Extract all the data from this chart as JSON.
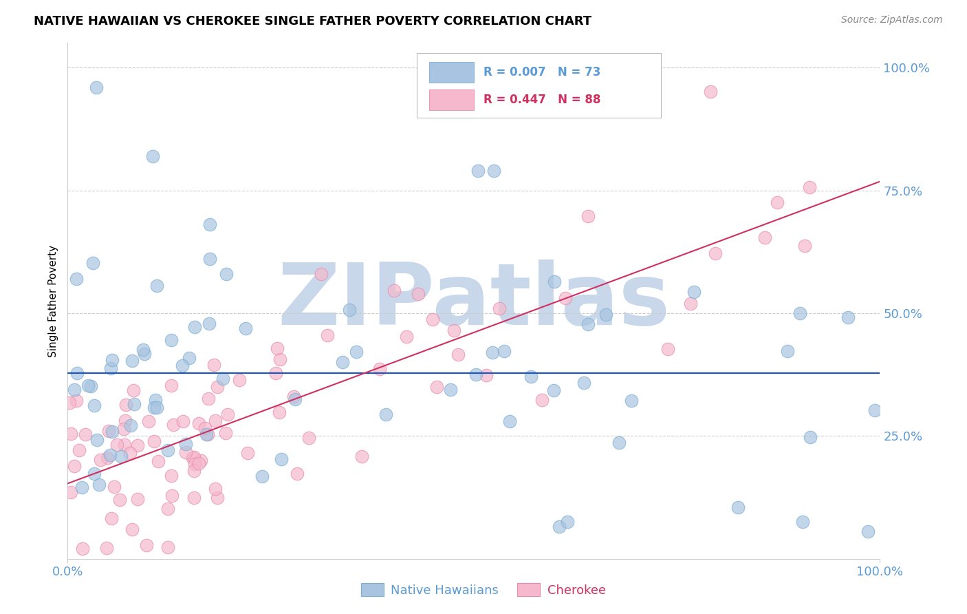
{
  "title": "NATIVE HAWAIIAN VS CHEROKEE SINGLE FATHER POVERTY CORRELATION CHART",
  "source": "Source: ZipAtlas.com",
  "ylabel": "Single Father Poverty",
  "blue_color": "#a8c4e0",
  "blue_edge_color": "#7aaed4",
  "pink_color": "#f5b8cc",
  "pink_edge_color": "#e88aaa",
  "blue_line_color": "#1a56c0",
  "pink_line_color": "#d03060",
  "grid_color": "#cccccc",
  "watermark_color": "#c8d8ea",
  "blue_R": 0.007,
  "blue_N": 73,
  "pink_R": 0.447,
  "pink_N": 88,
  "ytick_values": [
    0.25,
    0.5,
    0.75,
    1.0
  ],
  "ytick_labels": [
    "25.0%",
    "50.0%",
    "75.0%",
    "100.0%"
  ],
  "xtick_labels": [
    "0.0%",
    "100.0%"
  ],
  "legend_blue_R": "R = 0.007",
  "legend_blue_N": "N = 73",
  "legend_pink_R": "R = 0.447",
  "legend_pink_N": "N = 88",
  "legend_blue_label": "Native Hawaiians",
  "legend_pink_label": "Cherokee",
  "tick_color": "#5b9bd5",
  "title_fontsize": 13,
  "source_fontsize": 10,
  "tick_fontsize": 13,
  "legend_fontsize": 13
}
